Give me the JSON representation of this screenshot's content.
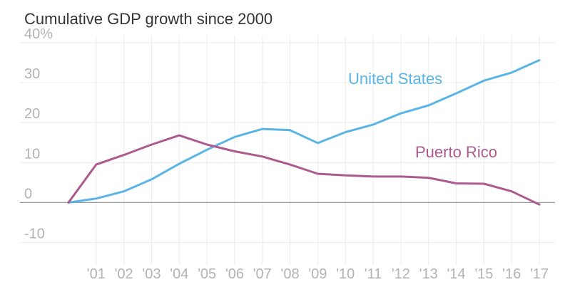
{
  "chart_data": {
    "type": "line",
    "title": "Cumulative GDP growth since 2000",
    "xlabel": "",
    "ylabel": "",
    "x": [
      2000,
      2001,
      2002,
      2003,
      2004,
      2005,
      2006,
      2007,
      2008,
      2009,
      2010,
      2011,
      2012,
      2013,
      2014,
      2015,
      2016,
      2017
    ],
    "x_tick_values": [
      2001,
      2002,
      2003,
      2004,
      2005,
      2006,
      2007,
      2008,
      2009,
      2010,
      2011,
      2012,
      2013,
      2014,
      2015,
      2016,
      2017
    ],
    "x_tick_labels": [
      "'01",
      "'02",
      "'03",
      "'04",
      "'05",
      "'06",
      "'07",
      "'08",
      "'09",
      "'10",
      "'11",
      "'12",
      "'13",
      "'14",
      "'15",
      "'16",
      "'17"
    ],
    "y_ticks": [
      -10,
      0,
      10,
      20,
      30,
      40
    ],
    "y_tick_labels": [
      "-10",
      "0",
      "10",
      "20",
      "30",
      "40%"
    ],
    "ylim": [
      -14,
      43
    ],
    "grid": true,
    "series": [
      {
        "name": "United States",
        "color": "#5ab4e5",
        "values": [
          0,
          1.0,
          2.8,
          5.8,
          9.7,
          13.2,
          16.4,
          18.4,
          18.1,
          14.9,
          17.6,
          19.5,
          22.3,
          24.3,
          27.3,
          30.5,
          32.5,
          35.6
        ]
      },
      {
        "name": "Puerto Rico",
        "color": "#ad5a8f",
        "values": [
          0,
          9.5,
          11.9,
          14.5,
          16.8,
          14.5,
          12.8,
          11.5,
          9.5,
          7.2,
          6.8,
          6.5,
          6.5,
          6.2,
          4.8,
          4.7,
          2.8,
          -0.5
        ]
      }
    ]
  }
}
